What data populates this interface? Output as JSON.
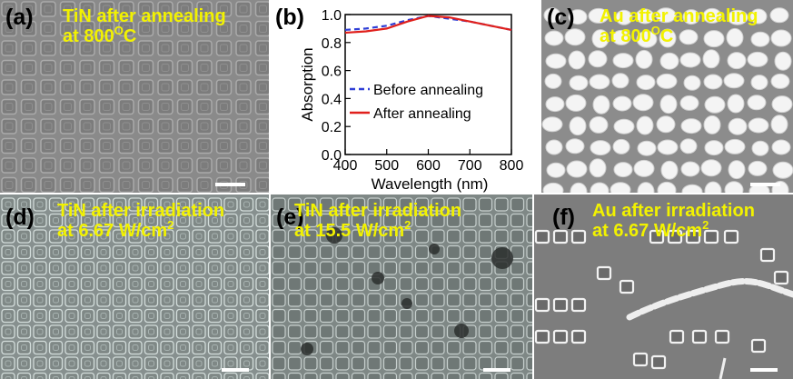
{
  "panels": {
    "a": {
      "label": "(a)",
      "caption_line1": "TiN after annealing",
      "caption_line2_prefix": "at 800",
      "caption_line2_sup": "O",
      "caption_line2_suffix": "C"
    },
    "b": {
      "label": "(b)"
    },
    "c": {
      "label": "(c)",
      "caption_line1": "Au after annealing",
      "caption_line2_prefix": "at 800",
      "caption_line2_sup": "O",
      "caption_line2_suffix": "C"
    },
    "d": {
      "label": "(d)",
      "caption_line1": "TiN after irradiation",
      "caption_line2_prefix": "at 6.67 W/cm",
      "caption_line2_sup": "2"
    },
    "e": {
      "label": "(e)",
      "caption_line1": "TiN after irradiation",
      "caption_line2_prefix": "at 15.5 W/cm",
      "caption_line2_sup": "2"
    },
    "f": {
      "label": "(f)",
      "caption_line1": "Au after irradiation",
      "caption_line2_prefix": "at 6.67 W/cm",
      "caption_line2_sup": "2"
    }
  },
  "colors": {
    "caption_text": "#f2f200",
    "sem_background": "#8a8a8a",
    "before_annealing": "#2f3fd6",
    "after_annealing": "#e0201c"
  },
  "chart_data": {
    "type": "line",
    "xlabel": "Wavelength (nm)",
    "ylabel": "Absorption",
    "xlim": [
      400,
      800
    ],
    "ylim": [
      0.0,
      1.0
    ],
    "xticks": [
      "400",
      "500",
      "600",
      "700",
      "800"
    ],
    "yticks": [
      "0.0",
      "0.2",
      "0.4",
      "0.6",
      "0.8",
      "1.0"
    ],
    "legend_position": "center-right",
    "x": [
      400,
      450,
      500,
      550,
      600,
      650,
      700,
      750,
      800
    ],
    "series": [
      {
        "name": "Before annealing",
        "style": "dashed",
        "color": "#2f3fd6",
        "values": [
          0.89,
          0.9,
          0.92,
          0.96,
          0.99,
          0.97,
          0.95,
          0.92,
          0.89
        ]
      },
      {
        "name": "After annealing",
        "style": "solid",
        "color": "#e0201c",
        "values": [
          0.87,
          0.88,
          0.9,
          0.95,
          0.99,
          0.98,
          0.95,
          0.92,
          0.89
        ]
      }
    ]
  }
}
